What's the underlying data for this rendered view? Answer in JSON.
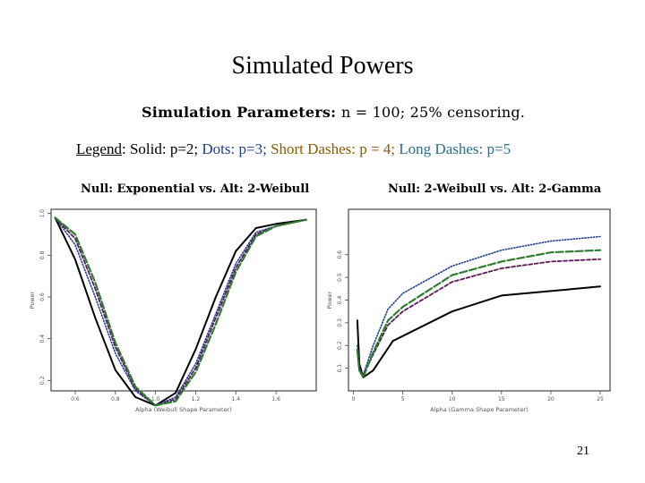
{
  "slide": {
    "title": "Simulated Powers",
    "params_prefix": "Simulation Parameters: ",
    "params_n": "n = 100; 25% censoring.",
    "legend_label": "Legend",
    "legend_items": [
      {
        "text": ": Solid: p=2; ",
        "color": "#000000"
      },
      {
        "text": "Dots: p=3; ",
        "color": "#1f3f8f"
      },
      {
        "text": "Short Dashes: p = 4; ",
        "color": "#8a5a00"
      },
      {
        "text": "Long Dashes: p=5",
        "color": "#2e6f8e"
      }
    ],
    "page_number": "21"
  },
  "chart_data": [
    {
      "type": "line",
      "title": "Null: Exponential vs. Alt: 2-Weibull",
      "xlabel": "Alpha (Weibull Shape Parameter)",
      "ylabel": "Power",
      "xlim": [
        0.48,
        1.8
      ],
      "ylim": [
        0.15,
        1.02
      ],
      "xticks": [
        0.6,
        0.8,
        1.0,
        1.2,
        1.4,
        1.6
      ],
      "xtick_labels": [
        "0.6",
        "0.8",
        "1.0",
        "1.2",
        "1.4",
        "1.6"
      ],
      "yticks": [
        0.2,
        0.4,
        0.6,
        0.8,
        1.0
      ],
      "ytick_labels": [
        "0.2",
        "0.4",
        "0.6",
        "0.8",
        "1.0"
      ],
      "grid": false,
      "series": [
        {
          "name": "p=2",
          "style": "solid",
          "color": "#000000",
          "x": [
            0.5,
            0.6,
            0.7,
            0.8,
            0.9,
            1.0,
            1.1,
            1.2,
            1.3,
            1.4,
            1.5,
            1.6,
            1.75
          ],
          "y": [
            0.98,
            0.78,
            0.5,
            0.25,
            0.12,
            0.08,
            0.14,
            0.35,
            0.6,
            0.82,
            0.93,
            0.95,
            0.97
          ]
        },
        {
          "name": "p=3",
          "style": "dotted",
          "color": "#1f3f8f",
          "x": [
            0.5,
            0.6,
            0.7,
            0.8,
            0.9,
            1.0,
            1.1,
            1.2,
            1.3,
            1.4,
            1.5,
            1.6,
            1.75
          ],
          "y": [
            0.98,
            0.85,
            0.6,
            0.33,
            0.15,
            0.08,
            0.12,
            0.28,
            0.52,
            0.76,
            0.91,
            0.94,
            0.97
          ]
        },
        {
          "name": "p=4",
          "style": "short-dash",
          "color": "#5a1a5a",
          "x": [
            0.5,
            0.6,
            0.7,
            0.8,
            0.9,
            1.0,
            1.1,
            1.2,
            1.3,
            1.4,
            1.5,
            1.6,
            1.75
          ],
          "y": [
            0.98,
            0.88,
            0.64,
            0.36,
            0.16,
            0.08,
            0.11,
            0.26,
            0.5,
            0.74,
            0.9,
            0.94,
            0.97
          ]
        },
        {
          "name": "p=5",
          "style": "long-dash",
          "color": "#2e7d2e",
          "x": [
            0.5,
            0.6,
            0.7,
            0.8,
            0.9,
            1.0,
            1.1,
            1.2,
            1.3,
            1.4,
            1.5,
            1.6,
            1.75
          ],
          "y": [
            0.98,
            0.9,
            0.67,
            0.38,
            0.17,
            0.08,
            0.1,
            0.24,
            0.47,
            0.72,
            0.89,
            0.94,
            0.97
          ]
        }
      ]
    },
    {
      "type": "line",
      "title": "Null: 2-Weibull vs. Alt: 2-Gamma",
      "xlabel": "Alpha (Gamma Shape Parameter)",
      "ylabel": "Power",
      "xlim": [
        -0.5,
        26
      ],
      "ylim": [
        0.0,
        0.8
      ],
      "xticks": [
        0,
        5,
        10,
        15,
        20,
        25
      ],
      "xtick_labels": [
        "0",
        "5",
        "10",
        "15",
        "20",
        "25"
      ],
      "yticks": [
        0.1,
        0.2,
        0.3,
        0.4,
        0.5,
        0.6
      ],
      "ytick_labels": [
        "0.1",
        "0.2",
        "0.3",
        "0.4",
        "0.5",
        "0.6"
      ],
      "grid": false,
      "series": [
        {
          "name": "p=2",
          "style": "solid",
          "color": "#000000",
          "x": [
            0.4,
            0.6,
            1.0,
            2.0,
            4.0,
            10.0,
            15.0,
            20.0,
            25.0
          ],
          "y": [
            0.31,
            0.12,
            0.06,
            0.09,
            0.22,
            0.35,
            0.42,
            0.44,
            0.46
          ]
        },
        {
          "name": "p=3",
          "style": "dotted",
          "color": "#1f3f8f",
          "x": [
            0.4,
            0.6,
            1.0,
            2.0,
            3.5,
            5.0,
            10.0,
            15.0,
            20.0,
            25.0
          ],
          "y": [
            0.2,
            0.1,
            0.07,
            0.2,
            0.36,
            0.43,
            0.55,
            0.62,
            0.66,
            0.68
          ]
        },
        {
          "name": "p=4",
          "style": "short-dash",
          "color": "#5a1a5a",
          "x": [
            0.4,
            0.6,
            1.0,
            2.0,
            3.5,
            5.0,
            10.0,
            15.0,
            20.0,
            25.0
          ],
          "y": [
            0.18,
            0.09,
            0.07,
            0.16,
            0.29,
            0.35,
            0.48,
            0.54,
            0.57,
            0.58
          ]
        },
        {
          "name": "p=5",
          "style": "long-dash",
          "color": "#2e7d2e",
          "x": [
            0.4,
            0.6,
            1.0,
            2.0,
            3.5,
            5.0,
            10.0,
            15.0,
            20.0,
            25.0
          ],
          "y": [
            0.18,
            0.09,
            0.06,
            0.17,
            0.31,
            0.37,
            0.51,
            0.57,
            0.61,
            0.62
          ]
        }
      ]
    }
  ]
}
